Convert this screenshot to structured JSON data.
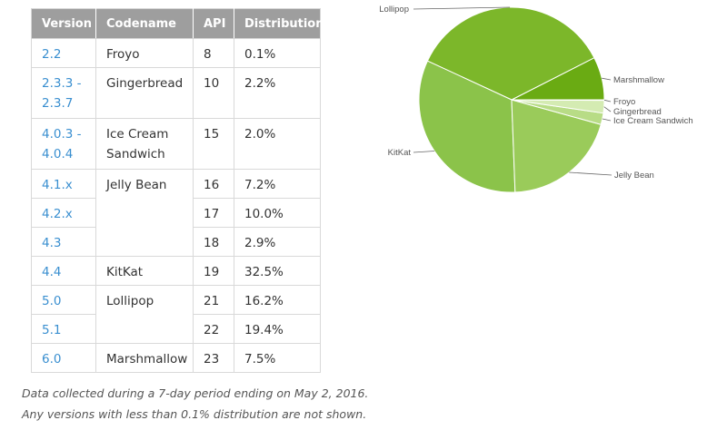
{
  "table": {
    "headers": [
      "Version",
      "Codename",
      "API",
      "Distribution"
    ],
    "rows": [
      {
        "version": "2.2",
        "codename": "Froyo",
        "api": "8",
        "distribution": "0.1%"
      },
      {
        "version": "2.3.3 - 2.3.7",
        "codename": "Gingerbread",
        "api": "10",
        "distribution": "2.2%"
      },
      {
        "version": "4.0.3 - 4.0.4",
        "codename": "Ice Cream Sandwich",
        "api": "15",
        "distribution": "2.0%"
      },
      {
        "version": "4.1.x",
        "codename": "Jelly Bean",
        "api": "16",
        "distribution": "7.2%"
      },
      {
        "version": "4.2.x",
        "codename": "",
        "api": "17",
        "distribution": "10.0%"
      },
      {
        "version": "4.3",
        "codename": "",
        "api": "18",
        "distribution": "2.9%"
      },
      {
        "version": "4.4",
        "codename": "KitKat",
        "api": "19",
        "distribution": "32.5%"
      },
      {
        "version": "5.0",
        "codename": "Lollipop",
        "api": "21",
        "distribution": "16.2%"
      },
      {
        "version": "5.1",
        "codename": "",
        "api": "22",
        "distribution": "19.4%"
      },
      {
        "version": "6.0",
        "codename": "Marshmallow",
        "api": "23",
        "distribution": "7.5%"
      }
    ]
  },
  "notes": {
    "line1": "Data collected during a 7-day period ending on May 2, 2016.",
    "line2": "Any versions with less than 0.1% distribution are not shown."
  },
  "chart_data": {
    "type": "pie",
    "title": "",
    "categories": [
      "Froyo",
      "Gingerbread",
      "Ice Cream Sandwich",
      "Jelly Bean",
      "KitKat",
      "Lollipop",
      "Marshmallow"
    ],
    "values": [
      0.1,
      2.2,
      2.0,
      20.1,
      32.5,
      35.6,
      7.5
    ],
    "colors": [
      "#e8f5d8",
      "#d4ebb2",
      "#b8dc86",
      "#9acb5a",
      "#8bc34a",
      "#7cb72a",
      "#6aab13"
    ],
    "labels": [
      "Froyo",
      "Gingerbread",
      "Ice Cream Sandwich",
      "Jelly Bean",
      "KitKat",
      "Lollipop",
      "Marshmallow"
    ]
  }
}
